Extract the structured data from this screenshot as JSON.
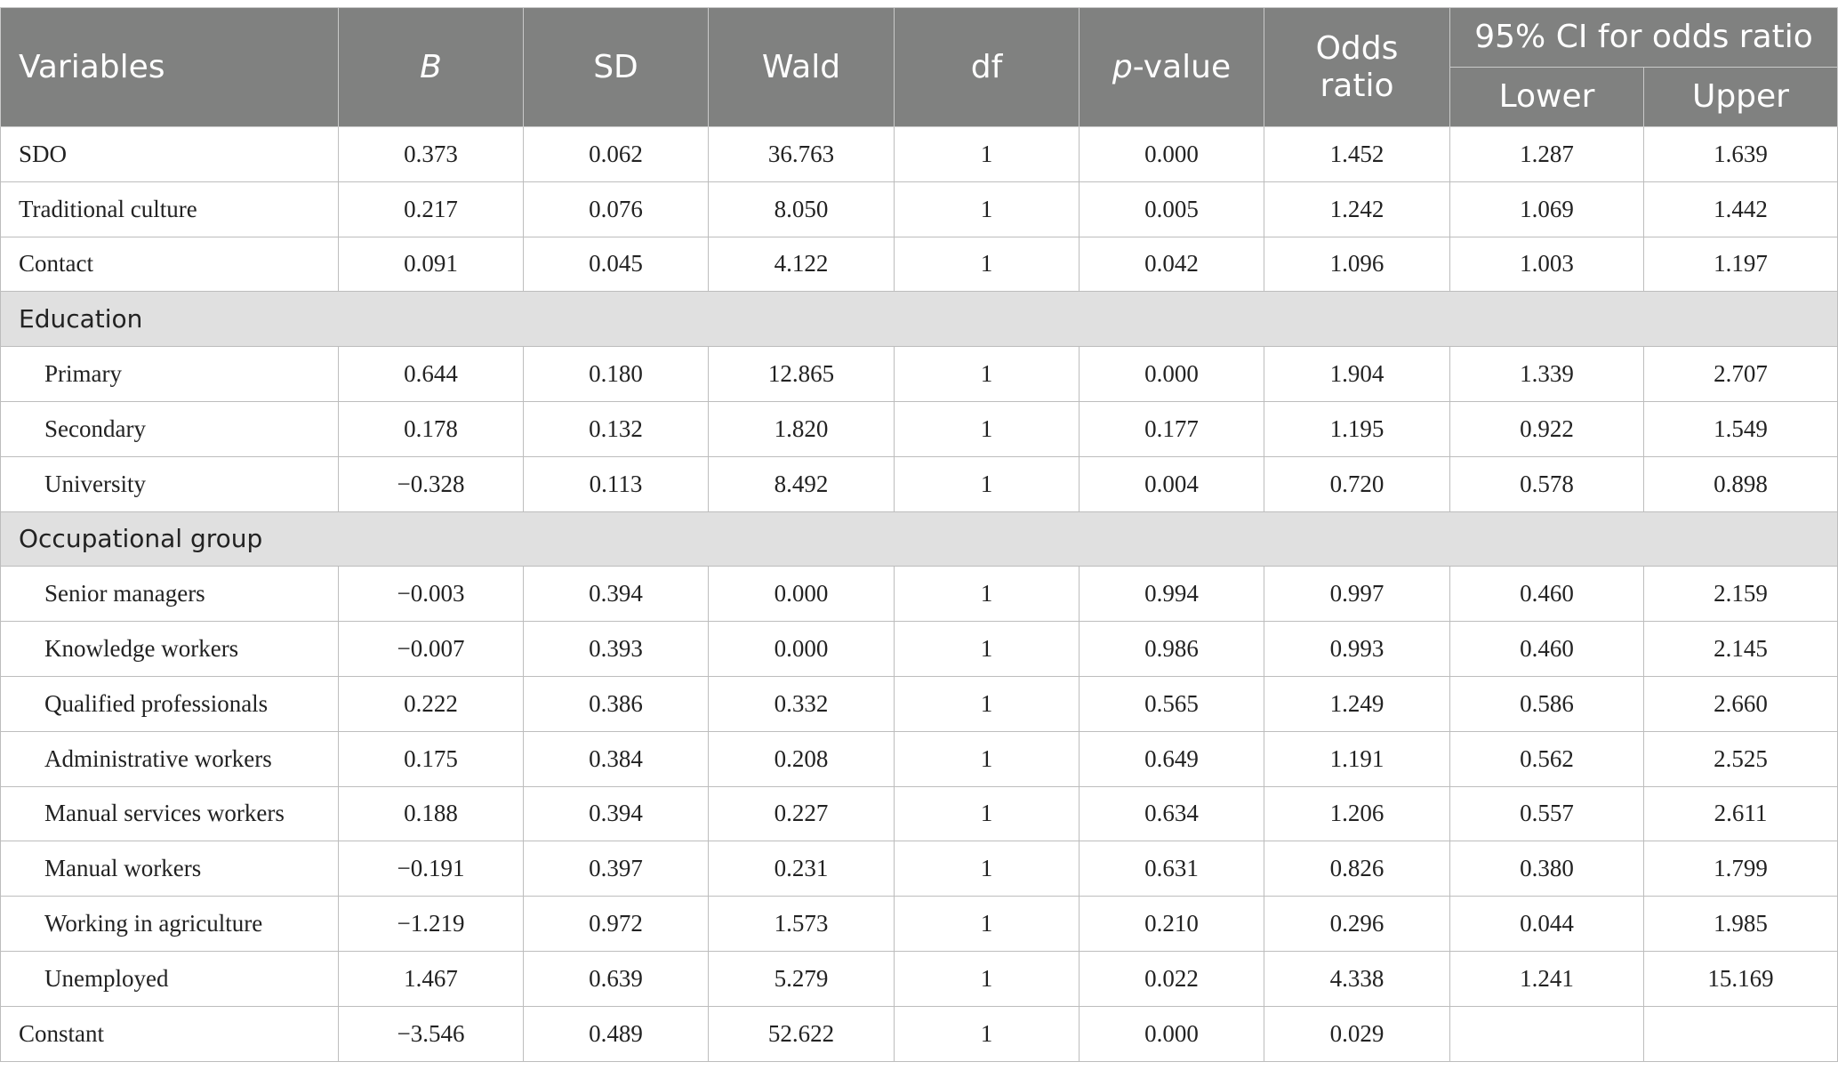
{
  "header": {
    "variables": "Variables",
    "b": "B",
    "sd": "SD",
    "wald": "Wald",
    "df": "df",
    "p_italic": "p",
    "p_rest": "-value",
    "odds_line1": "Odds",
    "odds_line2": "ratio",
    "ci": "95% CI for odds ratio",
    "lower": "Lower",
    "upper": "Upper"
  },
  "rows": [
    {
      "label": "SDO",
      "b": "0.373",
      "sd": "0.062",
      "wald": "36.763",
      "df": "1",
      "p": "0.000",
      "or": "1.452",
      "lower": "1.287",
      "upper": "1.639"
    },
    {
      "label": "Traditional culture",
      "b": "0.217",
      "sd": "0.076",
      "wald": "8.050",
      "df": "1",
      "p": "0.005",
      "or": "1.242",
      "lower": "1.069",
      "upper": "1.442"
    },
    {
      "label": "Contact",
      "b": "0.091",
      "sd": "0.045",
      "wald": "4.122",
      "df": "1",
      "p": "0.042",
      "or": "1.096",
      "lower": "1.003",
      "upper": "1.197"
    },
    {
      "section": "Education"
    },
    {
      "label": "Primary",
      "b": "0.644",
      "sd": "0.180",
      "wald": "12.865",
      "df": "1",
      "p": "0.000",
      "or": "1.904",
      "lower": "1.339",
      "upper": "2.707"
    },
    {
      "label": "Secondary",
      "b": "0.178",
      "sd": "0.132",
      "wald": "1.820",
      "df": "1",
      "p": "0.177",
      "or": "1.195",
      "lower": "0.922",
      "upper": "1.549"
    },
    {
      "label": "University",
      "b": "−0.328",
      "sd": "0.113",
      "wald": "8.492",
      "df": "1",
      "p": "0.004",
      "or": "0.720",
      "lower": "0.578",
      "upper": "0.898"
    },
    {
      "section": "Occupational group"
    },
    {
      "label": "Senior managers",
      "b": "−0.003",
      "sd": "0.394",
      "wald": "0.000",
      "df": "1",
      "p": "0.994",
      "or": "0.997",
      "lower": "0.460",
      "upper": "2.159"
    },
    {
      "label": "Knowledge workers",
      "b": "−0.007",
      "sd": "0.393",
      "wald": "0.000",
      "df": "1",
      "p": "0.986",
      "or": "0.993",
      "lower": "0.460",
      "upper": "2.145"
    },
    {
      "label": "Qualified professionals",
      "b": "0.222",
      "sd": "0.386",
      "wald": "0.332",
      "df": "1",
      "p": "0.565",
      "or": "1.249",
      "lower": "0.586",
      "upper": "2.660"
    },
    {
      "label": "Administrative workers",
      "b": "0.175",
      "sd": "0.384",
      "wald": "0.208",
      "df": "1",
      "p": "0.649",
      "or": "1.191",
      "lower": "0.562",
      "upper": "2.525"
    },
    {
      "label": "Manual services workers",
      "b": "0.188",
      "sd": "0.394",
      "wald": "0.227",
      "df": "1",
      "p": "0.634",
      "or": "1.206",
      "lower": "0.557",
      "upper": "2.611"
    },
    {
      "label": "Manual workers",
      "b": "−0.191",
      "sd": "0.397",
      "wald": "0.231",
      "df": "1",
      "p": "0.631",
      "or": "0.826",
      "lower": "0.380",
      "upper": "1.799"
    },
    {
      "label": "Working in agriculture",
      "b": "−1.219",
      "sd": "0.972",
      "wald": "1.573",
      "df": "1",
      "p": "0.210",
      "or": "0.296",
      "lower": "0.044",
      "upper": "1.985"
    },
    {
      "label": "Unemployed",
      "b": "1.467",
      "sd": "0.639",
      "wald": "5.279",
      "df": "1",
      "p": "0.022",
      "or": "4.338",
      "lower": "1.241",
      "upper": "15.169"
    },
    {
      "label": "Constant",
      "b": "−3.546",
      "sd": "0.489",
      "wald": "52.622",
      "df": "1",
      "p": "0.000",
      "or": "0.029",
      "lower": "",
      "upper": ""
    }
  ]
}
